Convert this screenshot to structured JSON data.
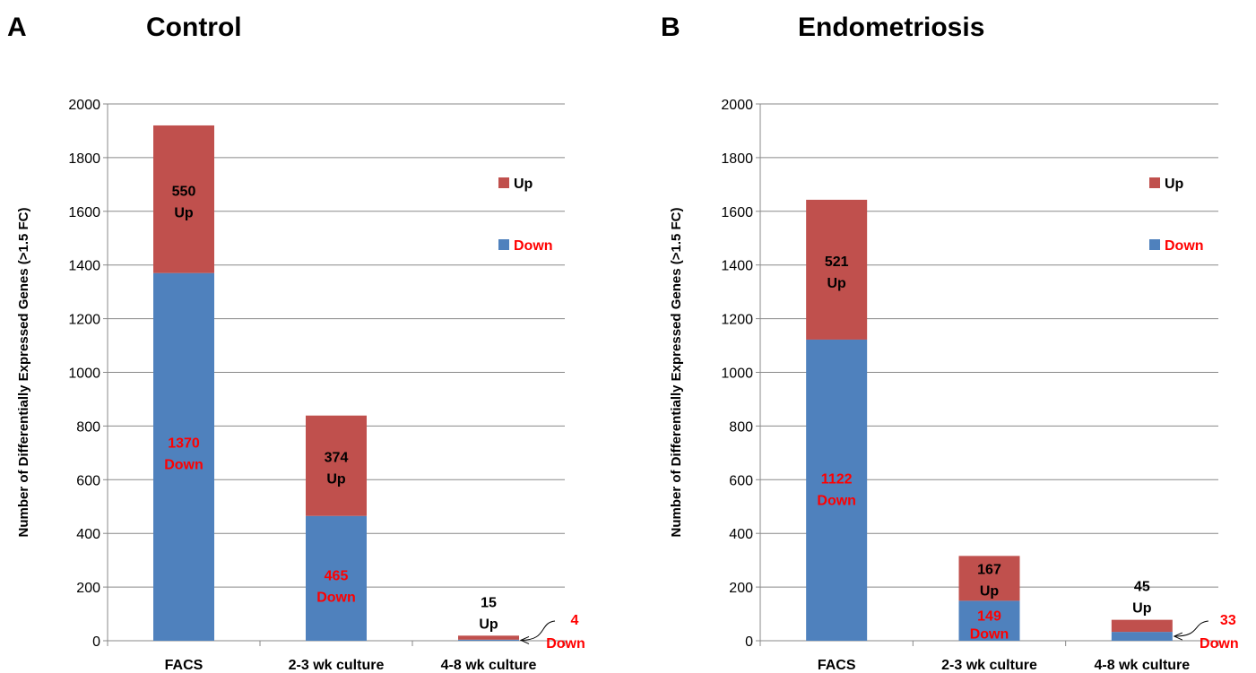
{
  "colors": {
    "up": "#c0504d",
    "down": "#4f81bd",
    "down_text": "#ff0000",
    "up_text": "#000000",
    "grid": "#898989"
  },
  "legend": {
    "up": "Up",
    "down": "Down"
  },
  "chart_data": [
    {
      "type": "bar",
      "stacked": true,
      "panel": "A",
      "title": "Control",
      "ylabel": "Number of Differentially Expressed Genes (>1.5 FC)",
      "xlabel": "",
      "ylim": [
        0,
        2000
      ],
      "yticks": [
        0,
        200,
        400,
        600,
        800,
        1000,
        1200,
        1400,
        1600,
        1800,
        2000
      ],
      "categories": [
        "FACS",
        "2-3 wk culture",
        "4-8 wk culture"
      ],
      "series": [
        {
          "name": "Down",
          "values": [
            1370,
            465,
            4
          ]
        },
        {
          "name": "Up",
          "values": [
            550,
            374,
            15
          ]
        }
      ],
      "labels": [
        {
          "up_num": "550",
          "up_word": "Up",
          "down_num": "1370",
          "down_word": "Down"
        },
        {
          "up_num": "374",
          "up_word": "Up",
          "down_num": "465",
          "down_word": "Down"
        },
        {
          "up_num": "15",
          "up_word": "Up",
          "down_num": "4",
          "down_word": "Down"
        }
      ],
      "grid": true,
      "legend_position": "right"
    },
    {
      "type": "bar",
      "stacked": true,
      "panel": "B",
      "title": "Endometriosis",
      "ylabel": "Number of Differentially Expressed Genes (>1.5 FC)",
      "xlabel": "",
      "ylim": [
        0,
        2000
      ],
      "yticks": [
        0,
        200,
        400,
        600,
        800,
        1000,
        1200,
        1400,
        1600,
        1800,
        2000
      ],
      "categories": [
        "FACS",
        "2-3 wk culture",
        "4-8 wk culture"
      ],
      "series": [
        {
          "name": "Down",
          "values": [
            1122,
            149,
            33
          ]
        },
        {
          "name": "Up",
          "values": [
            521,
            167,
            45
          ]
        }
      ],
      "labels": [
        {
          "up_num": "521",
          "up_word": "Up",
          "down_num": "1122",
          "down_word": "Down"
        },
        {
          "up_num": "167",
          "up_word": "Up",
          "down_num": "149",
          "down_word": "Down"
        },
        {
          "up_num": "45",
          "up_word": "Up",
          "down_num": "33",
          "down_word": "Down"
        }
      ],
      "grid": true,
      "legend_position": "right"
    }
  ]
}
